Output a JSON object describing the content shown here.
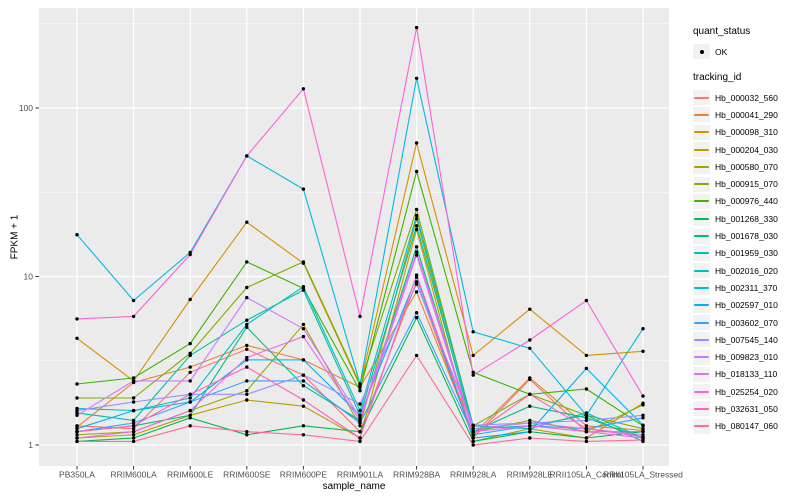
{
  "figure": {
    "panel_background": "#EBEBEB",
    "gridline_color": "#FFFFFF",
    "point_color": "#000000",
    "axis_text_color": "#4D4D4D",
    "tick_mark_color": "#333333"
  },
  "legend": {
    "quant_status_title": "quant_status",
    "quant_status_value": "OK",
    "tracking_id_title": "tracking_id"
  },
  "chart_data": {
    "type": "line",
    "title": "",
    "xlabel": "sample_name",
    "ylabel": "FPKM + 1",
    "y_scale": "log10",
    "grid": true,
    "legend_position": "right",
    "ylim": [
      0.75,
      390
    ],
    "y_tick_labels": [
      "1",
      "10",
      "100"
    ],
    "y_tick_values": [
      1,
      10,
      100
    ],
    "y_minor_gridline_values": [
      3.1623,
      31.623,
      316.23
    ],
    "categories": [
      "PB350LA",
      "RRIM600LA",
      "RRIM600LE",
      "RRIM600SE",
      "RRIM600PE",
      "RRIM901LA",
      "RRIM928BA",
      "RRIM928LA",
      "RRIM928LE",
      "RRII105LA_Control",
      "RRII105LA_Stressed"
    ],
    "series": [
      {
        "name": "Hb_000032_560",
        "color": "#F8766D",
        "quant_status": "OK",
        "values": [
          1.3,
          1.25,
          2.7,
          3.7,
          2.6,
          1.2,
          9.3,
          1.1,
          2.45,
          1.2,
          1.2
        ]
      },
      {
        "name": "Hb_000041_290",
        "color": "#EA8331",
        "quant_status": "OK",
        "values": [
          1.28,
          2.35,
          2.9,
          3.9,
          3.2,
          2.2,
          8.1,
          1.15,
          2.5,
          1.3,
          1.22
        ]
      },
      {
        "name": "Hb_000098_310",
        "color": "#D89000",
        "quant_status": "OK",
        "values": [
          4.3,
          2.4,
          7.3,
          21,
          12,
          2.25,
          62,
          3.4,
          6.4,
          3.4,
          3.6
        ]
      },
      {
        "name": "Hb_000204_030",
        "color": "#C09B00",
        "quant_status": "OK",
        "values": [
          1.1,
          1.15,
          1.5,
          1.85,
          1.7,
          1.1,
          19,
          1.05,
          1.25,
          1.1,
          1.77
        ]
      },
      {
        "name": "Hb_000580_070",
        "color": "#A3A500",
        "quant_status": "OK",
        "values": [
          1.15,
          1.2,
          1.6,
          2.1,
          5.2,
          1.3,
          22,
          1.2,
          1.4,
          1.2,
          1.73
        ]
      },
      {
        "name": "Hb_000915_070",
        "color": "#7CAE00",
        "quant_status": "OK",
        "values": [
          1.9,
          1.9,
          3.5,
          8.6,
          12.2,
          2.3,
          25,
          1.3,
          2.0,
          1.5,
          1.25
        ]
      },
      {
        "name": "Hb_000976_440",
        "color": "#39B600",
        "quant_status": "OK",
        "values": [
          2.3,
          2.5,
          4.0,
          12.2,
          8.5,
          2.1,
          42,
          2.7,
          2.0,
          2.15,
          1.3
        ]
      },
      {
        "name": "Hb_001268_330",
        "color": "#00BB4E",
        "quant_status": "OK",
        "values": [
          1.05,
          1.1,
          1.45,
          1.15,
          1.3,
          1.2,
          5.7,
          1.05,
          1.2,
          1.1,
          1.2
        ]
      },
      {
        "name": "Hb_001678_030",
        "color": "#00BF7D",
        "quant_status": "OK",
        "values": [
          1.2,
          1.3,
          1.5,
          5.0,
          2.25,
          1.4,
          15,
          1.2,
          1.7,
          1.45,
          1.1
        ]
      },
      {
        "name": "Hb_001959_030",
        "color": "#00C1A3",
        "quant_status": "OK",
        "values": [
          1.55,
          1.4,
          3.4,
          5.5,
          8.3,
          1.5,
          20,
          1.25,
          1.3,
          1.5,
          1.05
        ]
      },
      {
        "name": "Hb_002016_020",
        "color": "#00BFC4",
        "quant_status": "OK",
        "values": [
          1.65,
          1.6,
          1.9,
          5.2,
          8.7,
          1.6,
          23,
          1.3,
          1.25,
          1.55,
          1.1
        ]
      },
      {
        "name": "Hb_002311_370",
        "color": "#00BAE0",
        "quant_status": "OK",
        "values": [
          17.7,
          7.2,
          13.9,
          52,
          33,
          2.3,
          150,
          4.7,
          3.75,
          1.5,
          4.9
        ]
      },
      {
        "name": "Hb_002597_010",
        "color": "#00B0F6",
        "quant_status": "OK",
        "values": [
          1.25,
          1.6,
          1.8,
          3.2,
          3.2,
          1.5,
          9.9,
          1.1,
          1.2,
          2.85,
          1.31
        ]
      },
      {
        "name": "Hb_003602_070",
        "color": "#35A2FF",
        "quant_status": "OK",
        "values": [
          1.2,
          1.35,
          1.8,
          2.4,
          2.4,
          1.35,
          6.1,
          1.15,
          1.3,
          1.25,
          1.45
        ]
      },
      {
        "name": "Hb_007545_140",
        "color": "#9590FF",
        "quant_status": "OK",
        "values": [
          1.6,
          1.8,
          2.0,
          2.0,
          2.6,
          1.75,
          9.0,
          1.31,
          1.35,
          1.4,
          1.5
        ]
      },
      {
        "name": "Hb_009823_010",
        "color": "#C77CFF",
        "quant_status": "OK",
        "values": [
          1.5,
          2.4,
          2.4,
          7.5,
          4.9,
          1.45,
          14,
          1.25,
          1.35,
          1.25,
          1.15
        ]
      },
      {
        "name": "Hb_018133_110",
        "color": "#E76BF3",
        "quant_status": "OK",
        "values": [
          1.1,
          1.2,
          1.6,
          3.3,
          4.4,
          1.4,
          13.4,
          1.2,
          1.3,
          1.2,
          1.1
        ]
      },
      {
        "name": "Hb_025254_020",
        "color": "#FA62DB",
        "quant_status": "OK",
        "values": [
          5.6,
          5.8,
          13.5,
          52,
          130,
          5.8,
          300,
          2.6,
          4.2,
          7.2,
          1.95
        ]
      },
      {
        "name": "Hb_032631_050",
        "color": "#FF62BC",
        "quant_status": "OK",
        "values": [
          1.2,
          1.3,
          2.0,
          2.9,
          1.85,
          1.1,
          10.2,
          1.15,
          2.0,
          1.25,
          1.12
        ]
      },
      {
        "name": "Hb_080147_060",
        "color": "#FF6A98",
        "quant_status": "OK",
        "values": [
          1.05,
          1.05,
          1.3,
          1.2,
          1.15,
          1.05,
          3.4,
          1.0,
          1.1,
          1.05,
          1.07
        ]
      }
    ]
  }
}
